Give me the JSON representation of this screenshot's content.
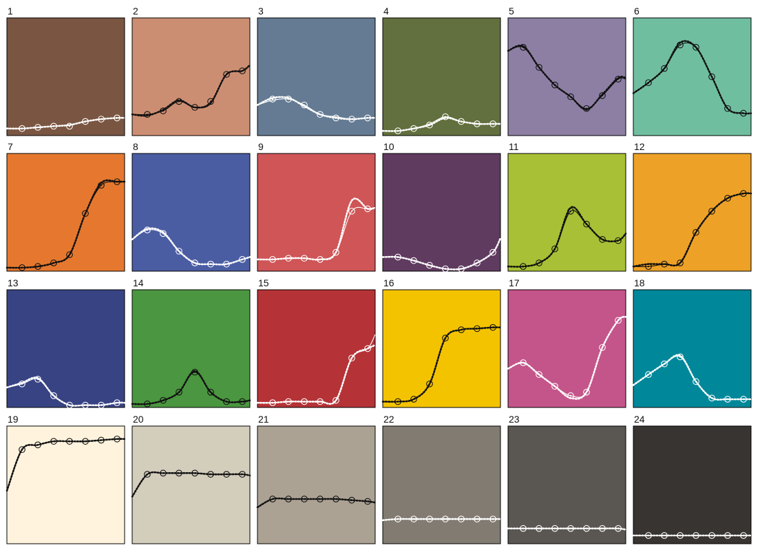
{
  "chart_data": {
    "type": "line",
    "layout": "grid of 24 small-multiple panels",
    "x_samples": 7,
    "panels": [
      {
        "label": "1",
        "bg": "#7a5642",
        "ink": "#ffffff",
        "samples": [
          0.06,
          0.07,
          0.08,
          0.08,
          0.12,
          0.14,
          0.15
        ],
        "curve": [
          0.06,
          0.06,
          0.07,
          0.08,
          0.09,
          0.12,
          0.14,
          0.15,
          0.15
        ],
        "dotted": [
          0.06,
          0.06,
          0.07,
          0.08,
          0.09,
          0.12,
          0.14,
          0.15,
          0.15
        ]
      },
      {
        "label": "2",
        "bg": "#cc8e72",
        "ink": "#111111",
        "samples": [
          0.18,
          0.21,
          0.29,
          0.24,
          0.29,
          0.52,
          0.55
        ],
        "curve": [
          0.18,
          0.18,
          0.21,
          0.29,
          0.24,
          0.27,
          0.52,
          0.55,
          0.6
        ],
        "dotted": [
          0.18,
          0.17,
          0.22,
          0.3,
          0.24,
          0.28,
          0.52,
          0.55,
          0.6
        ]
      },
      {
        "label": "3",
        "bg": "#657b93",
        "ink": "#ffffff",
        "samples": [
          0.31,
          0.31,
          0.26,
          0.18,
          0.15,
          0.14,
          0.15
        ],
        "curve": [
          0.26,
          0.3,
          0.31,
          0.26,
          0.18,
          0.16,
          0.14,
          0.15,
          0.15
        ],
        "dotted": [
          0.26,
          0.32,
          0.32,
          0.25,
          0.18,
          0.15,
          0.14,
          0.15,
          0.15
        ]
      },
      {
        "label": "4",
        "bg": "#626f3e",
        "ink": "#ffffff",
        "samples": [
          0.04,
          0.06,
          0.09,
          0.16,
          0.12,
          0.1,
          0.1
        ],
        "curve": [
          0.04,
          0.04,
          0.06,
          0.1,
          0.16,
          0.12,
          0.1,
          0.1,
          0.1
        ],
        "dotted": [
          0.04,
          0.04,
          0.06,
          0.09,
          0.15,
          0.12,
          0.1,
          0.1,
          0.1
        ]
      },
      {
        "label": "5",
        "bg": "#8d7fa4",
        "ink": "#111111",
        "samples": [
          0.75,
          0.58,
          0.43,
          0.33,
          0.23,
          0.34,
          0.48
        ],
        "curve": [
          0.72,
          0.75,
          0.58,
          0.43,
          0.33,
          0.23,
          0.34,
          0.48,
          0.48
        ],
        "dotted": [
          0.72,
          0.76,
          0.58,
          0.43,
          0.33,
          0.22,
          0.35,
          0.49,
          0.49
        ]
      },
      {
        "label": "6",
        "bg": "#70bea0",
        "ink": "#111111",
        "samples": [
          0.45,
          0.57,
          0.77,
          0.75,
          0.5,
          0.23,
          0.19
        ],
        "curve": [
          0.36,
          0.45,
          0.57,
          0.77,
          0.75,
          0.5,
          0.23,
          0.19,
          0.19
        ],
        "dotted": [
          0.36,
          0.45,
          0.57,
          0.79,
          0.75,
          0.5,
          0.23,
          0.19,
          0.19
        ]
      },
      {
        "label": "7",
        "bg": "#e5782e",
        "ink": "#111111",
        "samples": [
          0.03,
          0.04,
          0.07,
          0.14,
          0.49,
          0.73,
          0.76
        ],
        "curve": [
          0.03,
          0.03,
          0.04,
          0.07,
          0.14,
          0.49,
          0.73,
          0.76,
          0.76
        ],
        "dotted": [
          0.03,
          0.03,
          0.04,
          0.07,
          0.14,
          0.49,
          0.75,
          0.76,
          0.76
        ]
      },
      {
        "label": "8",
        "bg": "#4b5da2",
        "ink": "#ffffff",
        "samples": [
          0.35,
          0.32,
          0.17,
          0.07,
          0.06,
          0.06,
          0.1
        ],
        "curve": [
          0.27,
          0.35,
          0.32,
          0.17,
          0.07,
          0.06,
          0.06,
          0.1,
          0.12
        ],
        "dotted": [
          0.27,
          0.36,
          0.33,
          0.17,
          0.07,
          0.06,
          0.06,
          0.1,
          0.12
        ]
      },
      {
        "label": "9",
        "bg": "#cf5557",
        "ink": "#ffffff",
        "samples": [
          0.1,
          0.11,
          0.11,
          0.1,
          0.16,
          0.51,
          0.53
        ],
        "curve": [
          0.1,
          0.1,
          0.11,
          0.11,
          0.1,
          0.16,
          0.51,
          0.53,
          0.54
        ],
        "dotted": [
          0.1,
          0.1,
          0.11,
          0.11,
          0.1,
          0.16,
          0.6,
          0.53,
          0.54
        ]
      },
      {
        "label": "10",
        "bg": "#603b60",
        "ink": "#ffffff",
        "samples": [
          0.12,
          0.09,
          0.05,
          0.02,
          0.02,
          0.07,
          0.16
        ],
        "curve": [
          0.12,
          0.12,
          0.09,
          0.05,
          0.02,
          0.02,
          0.07,
          0.16,
          0.28
        ],
        "dotted": [
          0.12,
          0.12,
          0.09,
          0.05,
          0.02,
          0.02,
          0.07,
          0.16,
          0.28
        ]
      },
      {
        "label": "11",
        "bg": "#a8c035",
        "ink": "#111111",
        "samples": [
          0.04,
          0.07,
          0.19,
          0.51,
          0.4,
          0.27,
          0.26
        ],
        "curve": [
          0.04,
          0.04,
          0.07,
          0.19,
          0.51,
          0.4,
          0.27,
          0.26,
          0.32
        ],
        "dotted": [
          0.04,
          0.04,
          0.07,
          0.19,
          0.54,
          0.4,
          0.27,
          0.26,
          0.32
        ]
      },
      {
        "label": "12",
        "bg": "#eda127",
        "ink": "#111111",
        "samples": [
          0.04,
          0.06,
          0.07,
          0.33,
          0.51,
          0.62,
          0.66
        ],
        "curve": [
          0.04,
          0.04,
          0.06,
          0.07,
          0.33,
          0.51,
          0.62,
          0.66,
          0.66
        ],
        "dotted": [
          0.04,
          0.06,
          0.06,
          0.07,
          0.33,
          0.51,
          0.62,
          0.66,
          0.66
        ]
      },
      {
        "label": "13",
        "bg": "#384384",
        "ink": "#ffffff",
        "samples": [
          0.2,
          0.24,
          0.1,
          0.02,
          0.02,
          0.02,
          0.04
        ],
        "curve": [
          0.17,
          0.2,
          0.24,
          0.1,
          0.02,
          0.02,
          0.02,
          0.04,
          0.04
        ],
        "dotted": [
          0.17,
          0.21,
          0.25,
          0.1,
          0.02,
          0.02,
          0.02,
          0.04,
          0.04
        ]
      },
      {
        "label": "14",
        "bg": "#4b9640",
        "ink": "#111111",
        "samples": [
          0.03,
          0.06,
          0.13,
          0.3,
          0.13,
          0.05,
          0.05
        ],
        "curve": [
          0.03,
          0.03,
          0.06,
          0.13,
          0.3,
          0.13,
          0.05,
          0.05,
          0.06
        ],
        "dotted": [
          0.03,
          0.03,
          0.06,
          0.13,
          0.31,
          0.13,
          0.05,
          0.05,
          0.06
        ]
      },
      {
        "label": "15",
        "bg": "#b53337",
        "ink": "#ffffff",
        "samples": [
          0.04,
          0.05,
          0.05,
          0.05,
          0.06,
          0.42,
          0.5
        ],
        "curve": [
          0.04,
          0.04,
          0.05,
          0.05,
          0.05,
          0.06,
          0.42,
          0.5,
          0.62
        ],
        "dotted": [
          0.04,
          0.04,
          0.05,
          0.05,
          0.05,
          0.06,
          0.42,
          0.5,
          0.53
        ]
      },
      {
        "label": "16",
        "bg": "#f3c300",
        "ink": "#111111",
        "samples": [
          0.05,
          0.07,
          0.2,
          0.59,
          0.66,
          0.67,
          0.68
        ],
        "curve": [
          0.05,
          0.05,
          0.07,
          0.2,
          0.59,
          0.66,
          0.67,
          0.68,
          0.68
        ],
        "dotted": [
          0.05,
          0.05,
          0.07,
          0.2,
          0.59,
          0.66,
          0.67,
          0.68,
          0.68
        ]
      },
      {
        "label": "17",
        "bg": "#c4558a",
        "ink": "#ffffff",
        "samples": [
          0.38,
          0.28,
          0.18,
          0.1,
          0.13,
          0.51,
          0.74
        ],
        "curve": [
          0.33,
          0.38,
          0.28,
          0.18,
          0.1,
          0.13,
          0.51,
          0.74,
          0.77
        ],
        "dotted": [
          0.33,
          0.38,
          0.28,
          0.18,
          0.08,
          0.13,
          0.51,
          0.74,
          0.77
        ]
      },
      {
        "label": "18",
        "bg": "#00889a",
        "ink": "#ffffff",
        "samples": [
          0.28,
          0.37,
          0.43,
          0.22,
          0.08,
          0.07,
          0.07
        ],
        "curve": [
          0.19,
          0.28,
          0.37,
          0.43,
          0.22,
          0.08,
          0.07,
          0.07,
          0.07
        ],
        "dotted": [
          0.19,
          0.28,
          0.37,
          0.44,
          0.22,
          0.08,
          0.07,
          0.07,
          0.07
        ]
      },
      {
        "label": "19",
        "bg": "#fff3dd",
        "ink": "#111111",
        "samples": [
          0.8,
          0.84,
          0.87,
          0.87,
          0.87,
          0.88,
          0.89
        ],
        "curve": [
          0.45,
          0.8,
          0.84,
          0.87,
          0.87,
          0.87,
          0.88,
          0.89,
          0.89
        ],
        "dotted": [
          0.45,
          0.8,
          0.84,
          0.87,
          0.87,
          0.87,
          0.88,
          0.89,
          0.89
        ]
      },
      {
        "label": "20",
        "bg": "#d3cdbc",
        "ink": "#111111",
        "samples": [
          0.59,
          0.6,
          0.6,
          0.6,
          0.59,
          0.59,
          0.59
        ],
        "curve": [
          0.4,
          0.59,
          0.6,
          0.6,
          0.6,
          0.59,
          0.59,
          0.59,
          0.58
        ],
        "dotted": [
          0.4,
          0.59,
          0.6,
          0.6,
          0.6,
          0.59,
          0.59,
          0.59,
          0.58
        ]
      },
      {
        "label": "21",
        "bg": "#aba294",
        "ink": "#111111",
        "samples": [
          0.38,
          0.38,
          0.38,
          0.38,
          0.38,
          0.37,
          0.36
        ],
        "curve": [
          0.31,
          0.38,
          0.38,
          0.38,
          0.38,
          0.38,
          0.37,
          0.36,
          0.35
        ],
        "dotted": [
          0.31,
          0.38,
          0.38,
          0.38,
          0.38,
          0.38,
          0.37,
          0.36,
          0.35
        ]
      },
      {
        "label": "22",
        "bg": "#827b72",
        "ink": "#ffffff",
        "samples": [
          0.21,
          0.21,
          0.21,
          0.21,
          0.21,
          0.21,
          0.21
        ],
        "curve": [
          0.2,
          0.21,
          0.21,
          0.21,
          0.21,
          0.21,
          0.21,
          0.21,
          0.21
        ],
        "dotted": [
          0.2,
          0.21,
          0.21,
          0.21,
          0.21,
          0.21,
          0.21,
          0.21,
          0.21
        ]
      },
      {
        "label": "23",
        "bg": "#5a5652",
        "ink": "#ffffff",
        "samples": [
          0.13,
          0.13,
          0.13,
          0.13,
          0.13,
          0.13,
          0.13
        ],
        "curve": [
          0.13,
          0.13,
          0.13,
          0.13,
          0.13,
          0.13,
          0.13,
          0.13,
          0.12
        ],
        "dotted": [
          0.13,
          0.13,
          0.13,
          0.13,
          0.13,
          0.13,
          0.13,
          0.13,
          0.12
        ]
      },
      {
        "label": "24",
        "bg": "#373431",
        "ink": "#ffffff",
        "samples": [
          0.07,
          0.07,
          0.07,
          0.07,
          0.07,
          0.07,
          0.07
        ],
        "curve": [
          0.07,
          0.07,
          0.07,
          0.07,
          0.07,
          0.07,
          0.07,
          0.07,
          0.07
        ],
        "dotted": [
          0.07,
          0.07,
          0.07,
          0.07,
          0.07,
          0.07,
          0.07,
          0.07,
          0.07
        ]
      }
    ]
  }
}
